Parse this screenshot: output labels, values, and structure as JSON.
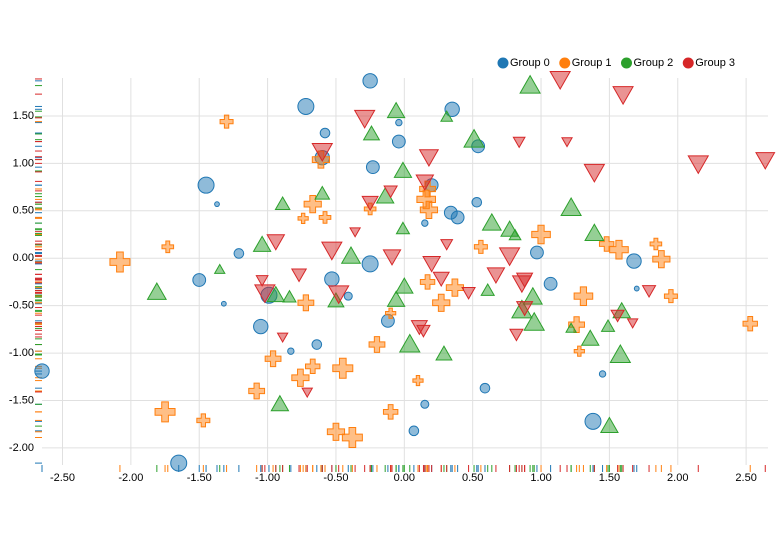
{
  "chart_data": {
    "type": "scatter",
    "xlim": [
      -2.65,
      2.66
    ],
    "ylim": [
      -2.18,
      1.9
    ],
    "xticks": [
      {
        "value": -2.5,
        "label": "-2.50"
      },
      {
        "value": -2,
        "label": "-2.00"
      },
      {
        "value": -1.5,
        "label": "-1.50"
      },
      {
        "value": -1,
        "label": "-1.00"
      },
      {
        "value": -0.5,
        "label": "-0.50"
      },
      {
        "value": 0,
        "label": "0.00"
      },
      {
        "value": 0.5,
        "label": "0.50"
      },
      {
        "value": 1,
        "label": "1.00"
      },
      {
        "value": 1.5,
        "label": "1.50"
      },
      {
        "value": 2,
        "label": "2.00"
      },
      {
        "value": 2.5,
        "label": "2.50"
      }
    ],
    "yticks": [
      {
        "value": -2,
        "label": "-2.00"
      },
      {
        "value": -1.5,
        "label": "-1.50"
      },
      {
        "value": -1,
        "label": "-1.00"
      },
      {
        "value": -0.5,
        "label": "-0.50"
      },
      {
        "value": 0,
        "label": "0.00"
      },
      {
        "value": 0.5,
        "label": "0.50"
      },
      {
        "value": 1,
        "label": "1.00"
      },
      {
        "value": 1.5,
        "label": "1.50"
      }
    ],
    "grid": true,
    "legend": "top-right",
    "series": [
      {
        "name": "Group 0",
        "color": "#1f77b4",
        "shape": "circle",
        "x": [
          -0.25,
          -0.72,
          0.35,
          -0.04,
          -0.58,
          -0.04,
          0.54,
          -0.6,
          -0.23,
          -1.45,
          0.2,
          -1.37,
          0.53,
          0.34,
          0.39,
          -1.21,
          -0.25,
          0.97,
          1.68,
          -1.5,
          -0.53,
          1.07,
          1.7,
          -0.99,
          -0.41,
          -1.32,
          -0.12,
          -1.05,
          -0.64,
          -0.83,
          -2.65,
          1.45,
          0.59,
          1.38,
          0.15,
          0.07,
          -1.65,
          0.15
        ],
        "values": [
          1.87,
          1.6,
          1.57,
          1.43,
          1.32,
          1.23,
          1.18,
          1.06,
          0.96,
          0.77,
          0.77,
          0.57,
          0.59,
          0.48,
          0.43,
          0.05,
          -0.06,
          0.06,
          -0.03,
          -0.23,
          -0.22,
          -0.27,
          -0.32,
          -0.39,
          -0.4,
          -0.48,
          -0.66,
          -0.72,
          -0.91,
          -0.98,
          -1.19,
          -1.22,
          -1.37,
          -1.72,
          -1.54,
          -1.82,
          -2.16,
          0.37
        ],
        "sizes": [
          0.9,
          1,
          0.9,
          0.4,
          0.6,
          0.8,
          0.8,
          0.9,
          0.8,
          1,
          0.8,
          0.3,
          0.6,
          0.8,
          0.8,
          0.6,
          1,
          0.8,
          0.9,
          0.8,
          0.9,
          0.8,
          0.3,
          1,
          0.5,
          0.3,
          0.8,
          0.9,
          0.6,
          0.4,
          0.9,
          0.4,
          0.6,
          1,
          0.5,
          0.6,
          1,
          0.4
        ]
      },
      {
        "name": "Group 1",
        "color": "#ff7f0e",
        "shape": "cross",
        "x": [
          -1.3,
          -0.61,
          0.17,
          0.16,
          -0.67,
          -0.25,
          -0.58,
          -0.74,
          0.18,
          1.0,
          0.56,
          -1.73,
          -2.08,
          1.48,
          1.57,
          1.84,
          1.88,
          0.17,
          0.37,
          0.27,
          -0.72,
          1.31,
          1.95,
          1.26,
          2.53,
          1.28,
          -0.2,
          -0.1,
          -0.96,
          -0.67,
          -0.45,
          -0.76,
          0.1,
          -1.08,
          -1.75,
          -1.47,
          -0.1,
          -0.5,
          -0.38
        ],
        "values": [
          1.44,
          1.04,
          0.73,
          0.62,
          0.57,
          0.52,
          0.43,
          0.42,
          0.51,
          0.25,
          0.12,
          0.12,
          -0.04,
          0.15,
          0.09,
          0.15,
          -0.01,
          -0.25,
          -0.31,
          -0.47,
          -0.47,
          -0.4,
          -0.4,
          -0.7,
          -0.69,
          -0.98,
          -0.91,
          -0.58,
          -1.06,
          -1.14,
          -1.16,
          -1.26,
          -1.29,
          -1.4,
          -1.62,
          -1.71,
          -1.62,
          -1.83,
          -1.89
        ],
        "sizes": [
          0.5,
          0.8,
          0.7,
          0.9,
          0.8,
          0.4,
          0.4,
          0.3,
          0.8,
          0.9,
          0.5,
          0.4,
          1,
          0.6,
          0.9,
          0.4,
          0.8,
          0.6,
          0.8,
          0.8,
          0.7,
          0.9,
          0.5,
          0.7,
          0.6,
          0.3,
          0.7,
          0.3,
          0.7,
          0.6,
          1,
          0.8,
          0.3,
          0.7,
          1,
          0.5,
          0.6,
          0.8,
          1
        ]
      },
      {
        "name": "Group 2",
        "color": "#2ca02c",
        "shape": "triangle-up",
        "x": [
          0.92,
          -0.06,
          0.31,
          -0.24,
          0.51,
          -0.01,
          -0.6,
          -0.14,
          -0.89,
          1.22,
          0.64,
          -0.01,
          0.77,
          0.81,
          1.39,
          -1.04,
          -0.39,
          -1.35,
          -1.81,
          0.0,
          0.61,
          -0.84,
          -0.94,
          -0.5,
          -0.06,
          0.86,
          0.95,
          1.59,
          1.49,
          1.22,
          1.36,
          0.04,
          0.29,
          1.58,
          -0.91,
          1.5,
          0.94
        ],
        "values": [
          1.82,
          1.55,
          1.49,
          1.31,
          1.25,
          0.92,
          0.68,
          0.65,
          0.57,
          0.53,
          0.37,
          0.31,
          0.3,
          0.24,
          0.26,
          0.14,
          0.02,
          -0.12,
          -0.36,
          -0.3,
          -0.34,
          -0.41,
          -0.39,
          -0.45,
          -0.44,
          -0.55,
          -0.68,
          -0.56,
          -0.72,
          -0.74,
          -0.85,
          -0.91,
          -1.01,
          -1.02,
          -1.54,
          -1.77,
          -0.41
        ],
        "sizes": [
          1,
          0.8,
          0.4,
          0.7,
          1,
          0.8,
          0.6,
          0.8,
          0.6,
          1,
          0.9,
          0.5,
          0.8,
          0.4,
          0.9,
          0.8,
          0.9,
          0.3,
          0.9,
          0.8,
          0.5,
          0.5,
          0.8,
          0.7,
          0.8,
          1,
          1,
          0.8,
          0.5,
          0.3,
          0.8,
          1,
          0.7,
          1,
          0.8,
          0.8,
          0.9
        ]
      },
      {
        "name": "Group 3",
        "color": "#d62728",
        "shape": "triangle-down",
        "x": [
          1.14,
          1.6,
          -0.29,
          0.84,
          1.19,
          -0.6,
          0.18,
          2.15,
          2.64,
          1.39,
          0.15,
          -0.1,
          -0.25,
          -0.36,
          0.31,
          -0.94,
          -0.53,
          -0.09,
          0.77,
          0.2,
          -1.04,
          -0.77,
          0.27,
          0.67,
          0.86,
          0.47,
          1.79,
          0.88,
          -1.02,
          -0.48,
          1.56,
          1.67,
          0.14,
          0.11,
          0.82,
          -0.89,
          -0.71,
          0.88
        ],
        "values": [
          1.89,
          1.73,
          1.48,
          1.23,
          1.23,
          1.13,
          1.07,
          1.0,
          1.04,
          0.91,
          0.81,
          0.71,
          0.59,
          0.28,
          0.15,
          0.18,
          0.09,
          0.02,
          0.03,
          -0.05,
          -0.23,
          -0.17,
          -0.21,
          -0.17,
          -0.26,
          -0.36,
          -0.34,
          -0.52,
          -0.36,
          -0.37,
          -0.6,
          -0.68,
          -0.76,
          -0.72,
          -0.8,
          -0.83,
          -1.41,
          -0.22
        ],
        "sizes": [
          1,
          1,
          1,
          0.4,
          0.3,
          1,
          0.9,
          1,
          0.9,
          1,
          0.8,
          0.5,
          0.7,
          0.3,
          0.4,
          0.8,
          1,
          0.8,
          1,
          0.8,
          0.4,
          0.6,
          0.7,
          0.8,
          0.9,
          0.5,
          0.5,
          0.7,
          1,
          1,
          0.5,
          0.3,
          0.5,
          0.7,
          0.5,
          0.3,
          0.3,
          0.7
        ]
      }
    ]
  }
}
